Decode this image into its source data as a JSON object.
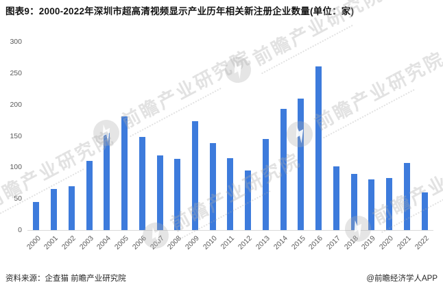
{
  "page": {
    "title": "图表9：2000-2022年深圳市超高清视频显示产业历年相关新注册企业数量(单位：家)"
  },
  "chart_data": {
    "type": "bar",
    "title": "图表9：2000-2022年深圳市超高清视频显示产业历年相关新注册企业数量(单位：家)",
    "unit": "家",
    "categories": [
      "2000",
      "2001",
      "2002",
      "2003",
      "2004",
      "2005",
      "2006",
      "2007",
      "2008",
      "2009",
      "2010",
      "2011",
      "2012",
      "2013",
      "2014",
      "2015",
      "2016",
      "2017",
      "2018",
      "2019",
      "2020",
      "2021",
      "2022"
    ],
    "values": [
      45,
      65,
      70,
      110,
      155,
      181,
      148,
      119,
      113,
      174,
      139,
      115,
      95,
      145,
      193,
      209,
      261,
      101,
      90,
      81,
      83,
      107,
      60
    ],
    "xlabel": "",
    "ylabel": "",
    "ylim": [
      0,
      300
    ],
    "yticks": [
      300,
      250,
      200,
      150,
      100,
      50,
      0
    ],
    "grid": false,
    "legend": "none",
    "bar_color": "#3d7bdc",
    "axis_tick_color": "#595959",
    "axis_line_color": "#d9d9d9"
  },
  "footer": {
    "source": "资料来源：企查猫 前瞻产业研究院",
    "credit": "@前瞻经济学人APP"
  },
  "watermark": {
    "text": "前瞻产业研究院"
  }
}
